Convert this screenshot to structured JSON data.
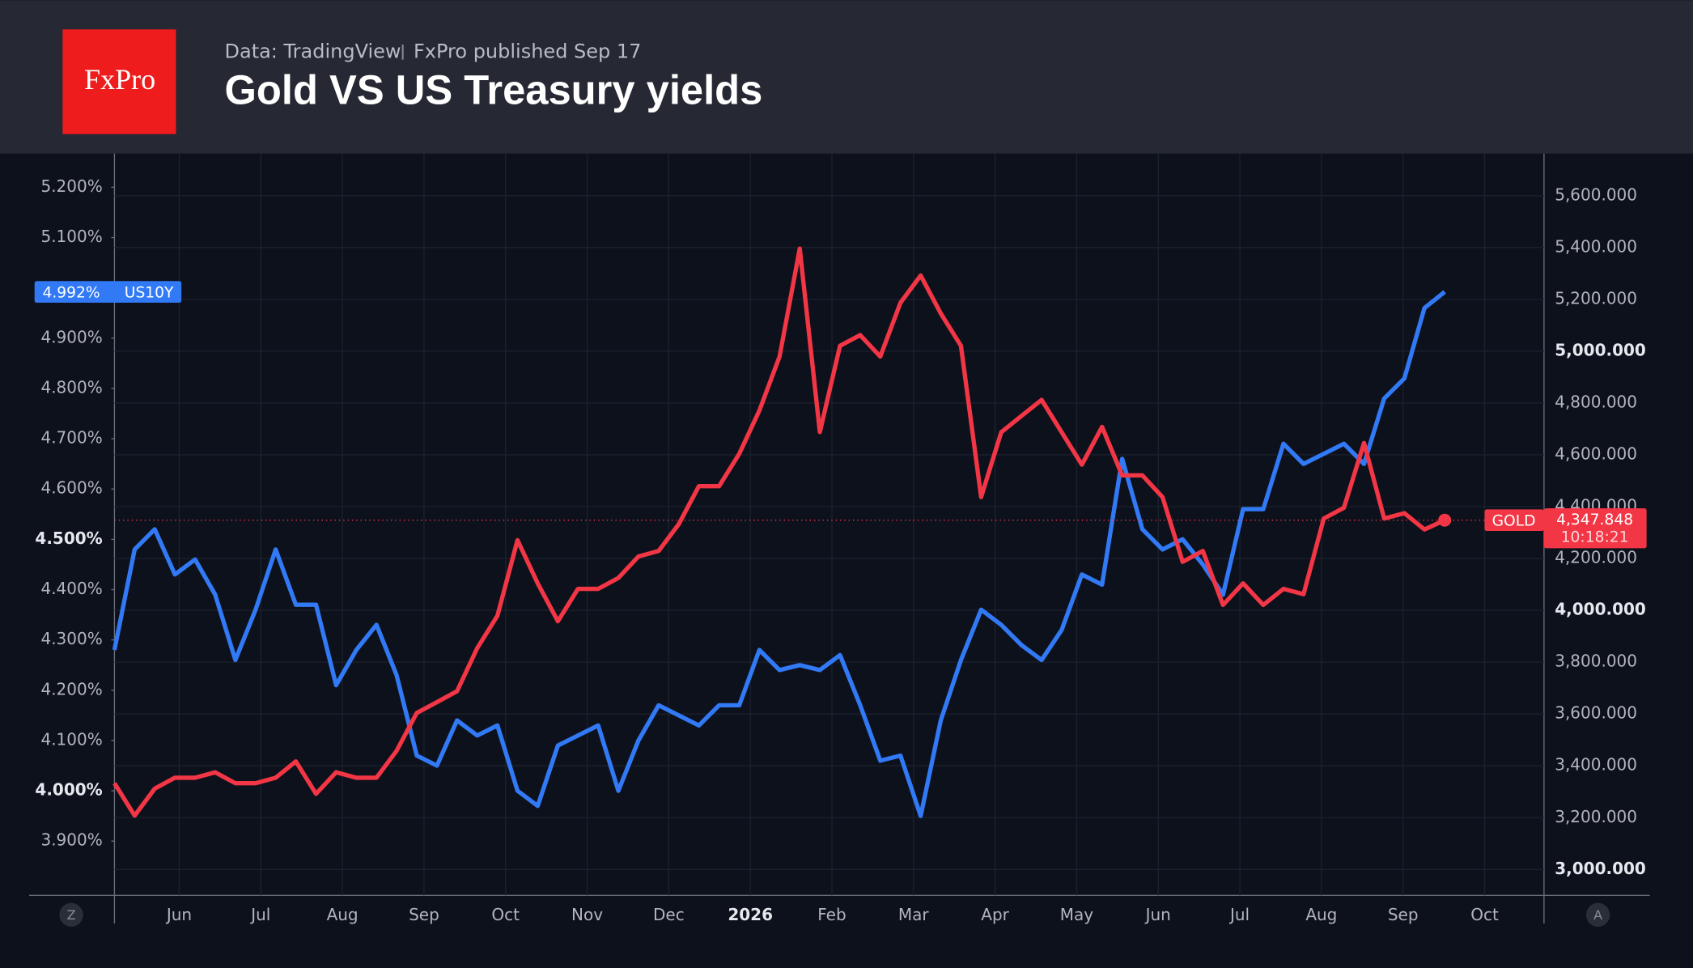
{
  "header": {
    "logo": "FxPro",
    "source": "Data: TradingView",
    "published": "FxPro published Sep 17"
  },
  "ui": {
    "left_button": "Z",
    "right_button": "A"
  },
  "chart_data": {
    "type": "line",
    "title": "Gold VS US Treasury yields",
    "x_labels": [
      {
        "label": "Jun"
      },
      {
        "label": "Jul"
      },
      {
        "label": "Aug"
      },
      {
        "label": "Sep"
      },
      {
        "label": "Oct"
      },
      {
        "label": "Nov"
      },
      {
        "label": "Dec"
      },
      {
        "label": "2026",
        "bold": true
      },
      {
        "label": "Feb"
      },
      {
        "label": "Mar"
      },
      {
        "label": "Apr"
      },
      {
        "label": "May"
      },
      {
        "label": "Jun"
      },
      {
        "label": "Jul"
      },
      {
        "label": "Aug"
      },
      {
        "label": "Sep"
      },
      {
        "label": "Oct"
      }
    ],
    "ylim": [
      3.792,
      5.267
    ],
    "yticks": [
      {
        "value": 3.9,
        "label": "3.900%"
      },
      {
        "value": 4.0,
        "label": "4.000%",
        "bold": true
      },
      {
        "value": 4.1,
        "label": "4.100%"
      },
      {
        "value": 4.2,
        "label": "4.200%"
      },
      {
        "value": 4.3,
        "label": "4.300%"
      },
      {
        "value": 4.4,
        "label": "4.400%"
      },
      {
        "value": 4.5,
        "label": "4.500%",
        "bold": true
      },
      {
        "value": 4.6,
        "label": "4.600%"
      },
      {
        "value": 4.7,
        "label": "4.700%"
      },
      {
        "value": 4.8,
        "label": "4.800%"
      },
      {
        "value": 4.9,
        "label": "4.900%"
      },
      {
        "value": 5.1,
        "label": "5.100%"
      },
      {
        "value": 5.2,
        "label": "5.200%"
      }
    ],
    "y2lim": [
      2900,
      5762.5
    ],
    "y2ticks": [
      {
        "value": 3000,
        "label": "3,000.000",
        "bold": true
      },
      {
        "value": 3200,
        "label": "3,200.000"
      },
      {
        "value": 3400,
        "label": "3,400.000"
      },
      {
        "value": 3600,
        "label": "3,600.000"
      },
      {
        "value": 3800,
        "label": "3,800.000"
      },
      {
        "value": 4000,
        "label": "4,000.000",
        "bold": true
      },
      {
        "value": 4200,
        "label": "4,200.000"
      },
      {
        "value": 4400,
        "label": "4,400.000"
      },
      {
        "value": 4600,
        "label": "4,600.000"
      },
      {
        "value": 4800,
        "label": "4,800.000"
      },
      {
        "value": 5000,
        "label": "5,000.000",
        "bold": true
      },
      {
        "value": 5200,
        "label": "5,200.000"
      },
      {
        "value": 5400,
        "label": "5,400.000"
      },
      {
        "value": 5600,
        "label": "5,600.000"
      }
    ],
    "grid": true,
    "series": [
      {
        "name": "US10Y",
        "color": "#3179f5",
        "last_label": "4.992%",
        "values": [
          4.28,
          4.48,
          4.52,
          4.43,
          4.46,
          4.39,
          4.26,
          4.36,
          4.48,
          4.37,
          4.37,
          4.21,
          4.28,
          4.33,
          4.23,
          4.07,
          4.05,
          4.14,
          4.11,
          4.13,
          4.0,
          3.97,
          4.09,
          4.11,
          4.13,
          4.0,
          4.1,
          4.17,
          4.15,
          4.13,
          4.17,
          4.17,
          4.28,
          4.24,
          4.25,
          4.24,
          4.27,
          4.17,
          4.06,
          4.07,
          3.95,
          4.14,
          4.26,
          4.36,
          4.33,
          4.29,
          4.26,
          4.32,
          4.43,
          4.41,
          4.66,
          4.52,
          4.48,
          4.5,
          4.45,
          4.39,
          4.56,
          4.56,
          4.69,
          4.65,
          4.67,
          4.69,
          4.65,
          4.78,
          4.82,
          4.96,
          4.992
        ]
      },
      {
        "name": "GOLD",
        "color": "#f23645",
        "axis": "y2",
        "last_label": "4,347.848",
        "timer": "10:18:21",
        "values": [
          3333,
          3208,
          3312,
          3354,
          3354,
          3375,
          3333,
          3333,
          3354,
          3417,
          3292,
          3375,
          3354,
          3354,
          3458,
          3604,
          3646,
          3688,
          3854,
          3979,
          4271,
          4104,
          3958,
          4083,
          4083,
          4125,
          4208,
          4229,
          4333,
          4479,
          4479,
          4604,
          4771,
          4979,
          5396,
          4688,
          5021,
          5062,
          4979,
          5187,
          5292,
          5146,
          5021,
          4437,
          4687,
          4750,
          4812,
          4687,
          4562,
          4708,
          4521,
          4521,
          4437,
          4187,
          4229,
          4021,
          4104,
          4021,
          4083,
          4062,
          4354,
          4396,
          4646,
          4354,
          4375,
          4312,
          4347.848
        ]
      }
    ]
  }
}
